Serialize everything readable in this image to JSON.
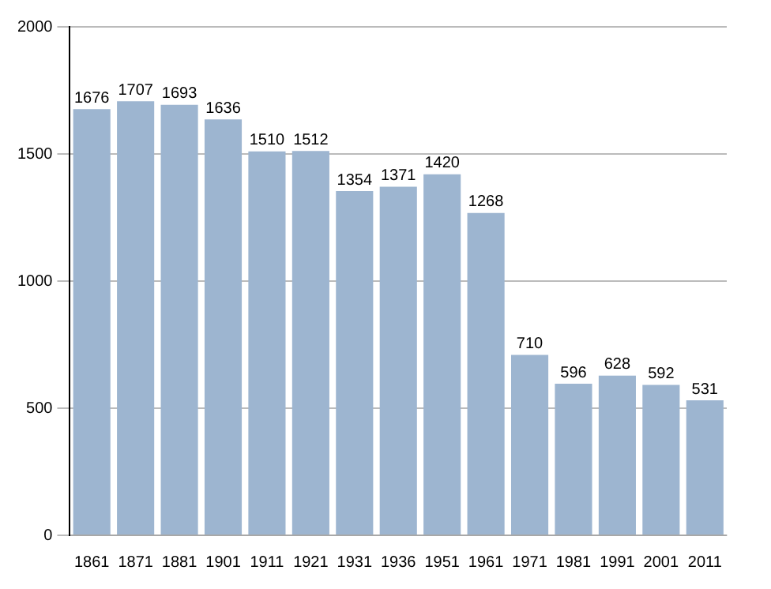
{
  "chart_data": {
    "type": "bar",
    "categories": [
      "1861",
      "1871",
      "1881",
      "1901",
      "1911",
      "1921",
      "1931",
      "1936",
      "1951",
      "1961",
      "1971",
      "1981",
      "1991",
      "2001",
      "2011"
    ],
    "values": [
      1676,
      1707,
      1693,
      1636,
      1510,
      1512,
      1354,
      1371,
      1420,
      1268,
      710,
      596,
      628,
      592,
      531
    ],
    "color": "#9db5d0",
    "ylim": [
      0,
      2000
    ],
    "yticks": [
      0,
      500,
      1000,
      1500,
      2000
    ],
    "grid": "y",
    "data_labels": true,
    "legend": false
  }
}
